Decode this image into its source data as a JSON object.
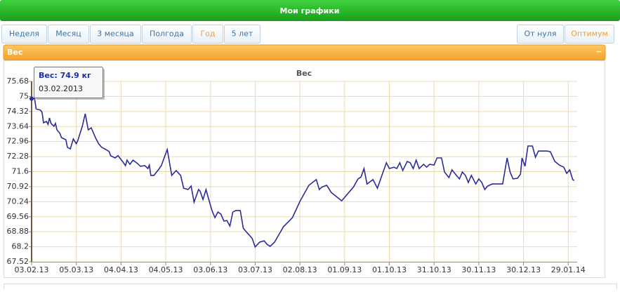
{
  "header": {
    "title": "Мои графики"
  },
  "periods": [
    {
      "label": "Неделя"
    },
    {
      "label": "Месяц"
    },
    {
      "label": "3 месяца"
    },
    {
      "label": "Полгода"
    },
    {
      "label": "Год",
      "selected": true
    },
    {
      "label": "5 лет"
    }
  ],
  "scale_modes": [
    {
      "label": "От нуля"
    },
    {
      "label": "Оптимум",
      "selected": true
    }
  ],
  "panel": {
    "title": "Вес",
    "collapse": "−"
  },
  "chart_data": {
    "type": "line",
    "title": "Вес",
    "color": "#2b2b9a",
    "grid": true,
    "tooltip": {
      "text": "Вес: 74.9 кг",
      "date": "03.02.2013"
    },
    "x": [
      "03.02.13",
      "05.02.13",
      "06.02.13",
      "09.02.13",
      "10.02.13",
      "11.02.13",
      "13.02.13",
      "14.02.13",
      "15.02.13",
      "16.02.13",
      "18.02.13",
      "19.02.13",
      "20.02.13",
      "22.02.13",
      "23.02.13",
      "26.02.13",
      "27.02.13",
      "01.03.13",
      "03.03.13",
      "05.03.13",
      "06.03.13",
      "09.03.13",
      "11.03.13",
      "13.03.13",
      "15.03.13",
      "18.03.13",
      "20.03.13",
      "22.03.13",
      "24.03.13",
      "27.03.13",
      "28.03.13",
      "31.03.13",
      "02.04.13",
      "05.04.13",
      "07.04.13",
      "08.04.13",
      "10.04.13",
      "12.04.13",
      "15.04.13",
      "17.04.13",
      "20.04.13",
      "22.04.13",
      "23.04.13",
      "24.04.13",
      "26.04.13",
      "29.04.13",
      "01.05.13",
      "05.05.13",
      "08.05.13",
      "11.05.13",
      "14.05.13",
      "16.05.13",
      "19.05.13",
      "21.05.13",
      "23.05.13",
      "26.05.13",
      "27.05.13",
      "29.05.13",
      "31.05.13",
      "02.06.13",
      "04.06.13",
      "06.06.13",
      "08.06.13",
      "10.06.13",
      "12.06.13",
      "14.06.13",
      "16.06.13",
      "18.06.13",
      "20.06.13",
      "23.06.13",
      "25.06.13",
      "27.06.13",
      "29.06.13",
      "01.07.13",
      "03.07.13",
      "06.07.13",
      "09.07.13",
      "11.07.13",
      "13.07.13",
      "16.07.13",
      "22.07.13",
      "28.07.13",
      "02.08.13",
      "08.08.13",
      "13.08.13",
      "15.08.13",
      "17.08.13",
      "20.08.13",
      "23.08.13",
      "30.08.13",
      "07.09.13",
      "10.09.13",
      "12.09.13",
      "14.09.13",
      "16.09.13",
      "20.09.13",
      "23.09.13",
      "26.09.13",
      "29.09.13",
      "01.10.13",
      "04.10.13",
      "06.10.13",
      "08.10.13",
      "10.10.13",
      "13.10.13",
      "15.10.13",
      "17.10.13",
      "19.10.13",
      "21.10.13",
      "24.10.13",
      "26.10.13",
      "28.10.13",
      "31.10.13",
      "02.11.13",
      "05.11.13",
      "07.11.13",
      "10.11.13",
      "12.11.13",
      "15.11.13",
      "17.11.13",
      "19.11.13",
      "21.11.13",
      "23.11.13",
      "25.11.13",
      "28.11.13",
      "30.11.13",
      "02.12.13",
      "04.12.13",
      "06.12.13",
      "09.12.13",
      "16.12.13",
      "19.12.13",
      "21.12.13",
      "23.12.13",
      "26.12.13",
      "28.12.13",
      "29.12.13",
      "31.12.13",
      "02.01.14",
      "05.01.14",
      "07.01.14",
      "09.01.14",
      "15.01.14",
      "17.01.14",
      "20.01.14",
      "23.01.14",
      "26.01.14",
      "28.01.14",
      "30.01.14",
      "01.02.14",
      "02.02.14"
    ],
    "values": [
      74.9,
      74.92,
      74.44,
      74.38,
      74.28,
      73.81,
      73.87,
      73.74,
      74.03,
      73.78,
      73.65,
      73.78,
      73.49,
      73.33,
      73.14,
      73.04,
      72.7,
      72.63,
      73.08,
      72.86,
      73.01,
      73.65,
      74.22,
      73.49,
      73.58,
      73.11,
      72.86,
      72.7,
      72.63,
      72.51,
      72.32,
      72.22,
      72.32,
      72.06,
      71.87,
      72.12,
      71.93,
      72.12,
      71.97,
      71.84,
      71.87,
      71.74,
      71.9,
      71.43,
      71.43,
      71.68,
      71.87,
      72.6,
      71.43,
      71.65,
      71.43,
      70.85,
      70.79,
      70.95,
      70.22,
      70.79,
      70.72,
      70.34,
      70.79,
      70.31,
      69.84,
      69.52,
      69.77,
      69.68,
      69.36,
      69.39,
      69.14,
      69.77,
      69.84,
      69.84,
      69.04,
      68.88,
      68.73,
      68.57,
      68.19,
      68.41,
      68.47,
      68.31,
      68.22,
      68.41,
      69.11,
      69.52,
      70.25,
      70.98,
      71.24,
      70.79,
      70.91,
      70.98,
      70.66,
      70.28,
      70.91,
      71.27,
      71.36,
      71.74,
      71.04,
      71.24,
      70.85,
      71.43,
      72.0,
      71.74,
      71.8,
      71.74,
      72.0,
      71.65,
      72.06,
      72.0,
      71.74,
      72.12,
      71.74,
      71.93,
      71.8,
      71.93,
      71.9,
      72.22,
      72.22,
      71.58,
      71.33,
      71.68,
      71.43,
      71.27,
      71.58,
      71.43,
      71.11,
      71.43,
      71.04,
      71.27,
      71.11,
      70.79,
      70.95,
      71.04,
      71.04,
      72.22,
      71.58,
      71.27,
      71.3,
      71.49,
      72.22,
      71.84,
      72.76,
      72.76,
      72.25,
      72.53,
      72.53,
      72.5,
      72.06,
      71.9,
      71.8,
      71.52,
      71.68,
      71.24,
      71.2
    ],
    "xlim": [
      "03.02.13",
      "04.02.14"
    ],
    "xticks": [
      "03.02.13",
      "05.03.13",
      "04.04.13",
      "04.05.13",
      "03.06.13",
      "03.07.13",
      "02.08.13",
      "01.09.13",
      "01.10.13",
      "31.10.13",
      "30.11.13",
      "30.12.13",
      "29.01.14"
    ],
    "ylim": [
      67.52,
      75.68
    ],
    "yticks": [
      67.52,
      68.2,
      68.88,
      69.56,
      70.24,
      70.92,
      71.6,
      72.28,
      72.96,
      73.64,
      74.32,
      75,
      75.68
    ]
  }
}
